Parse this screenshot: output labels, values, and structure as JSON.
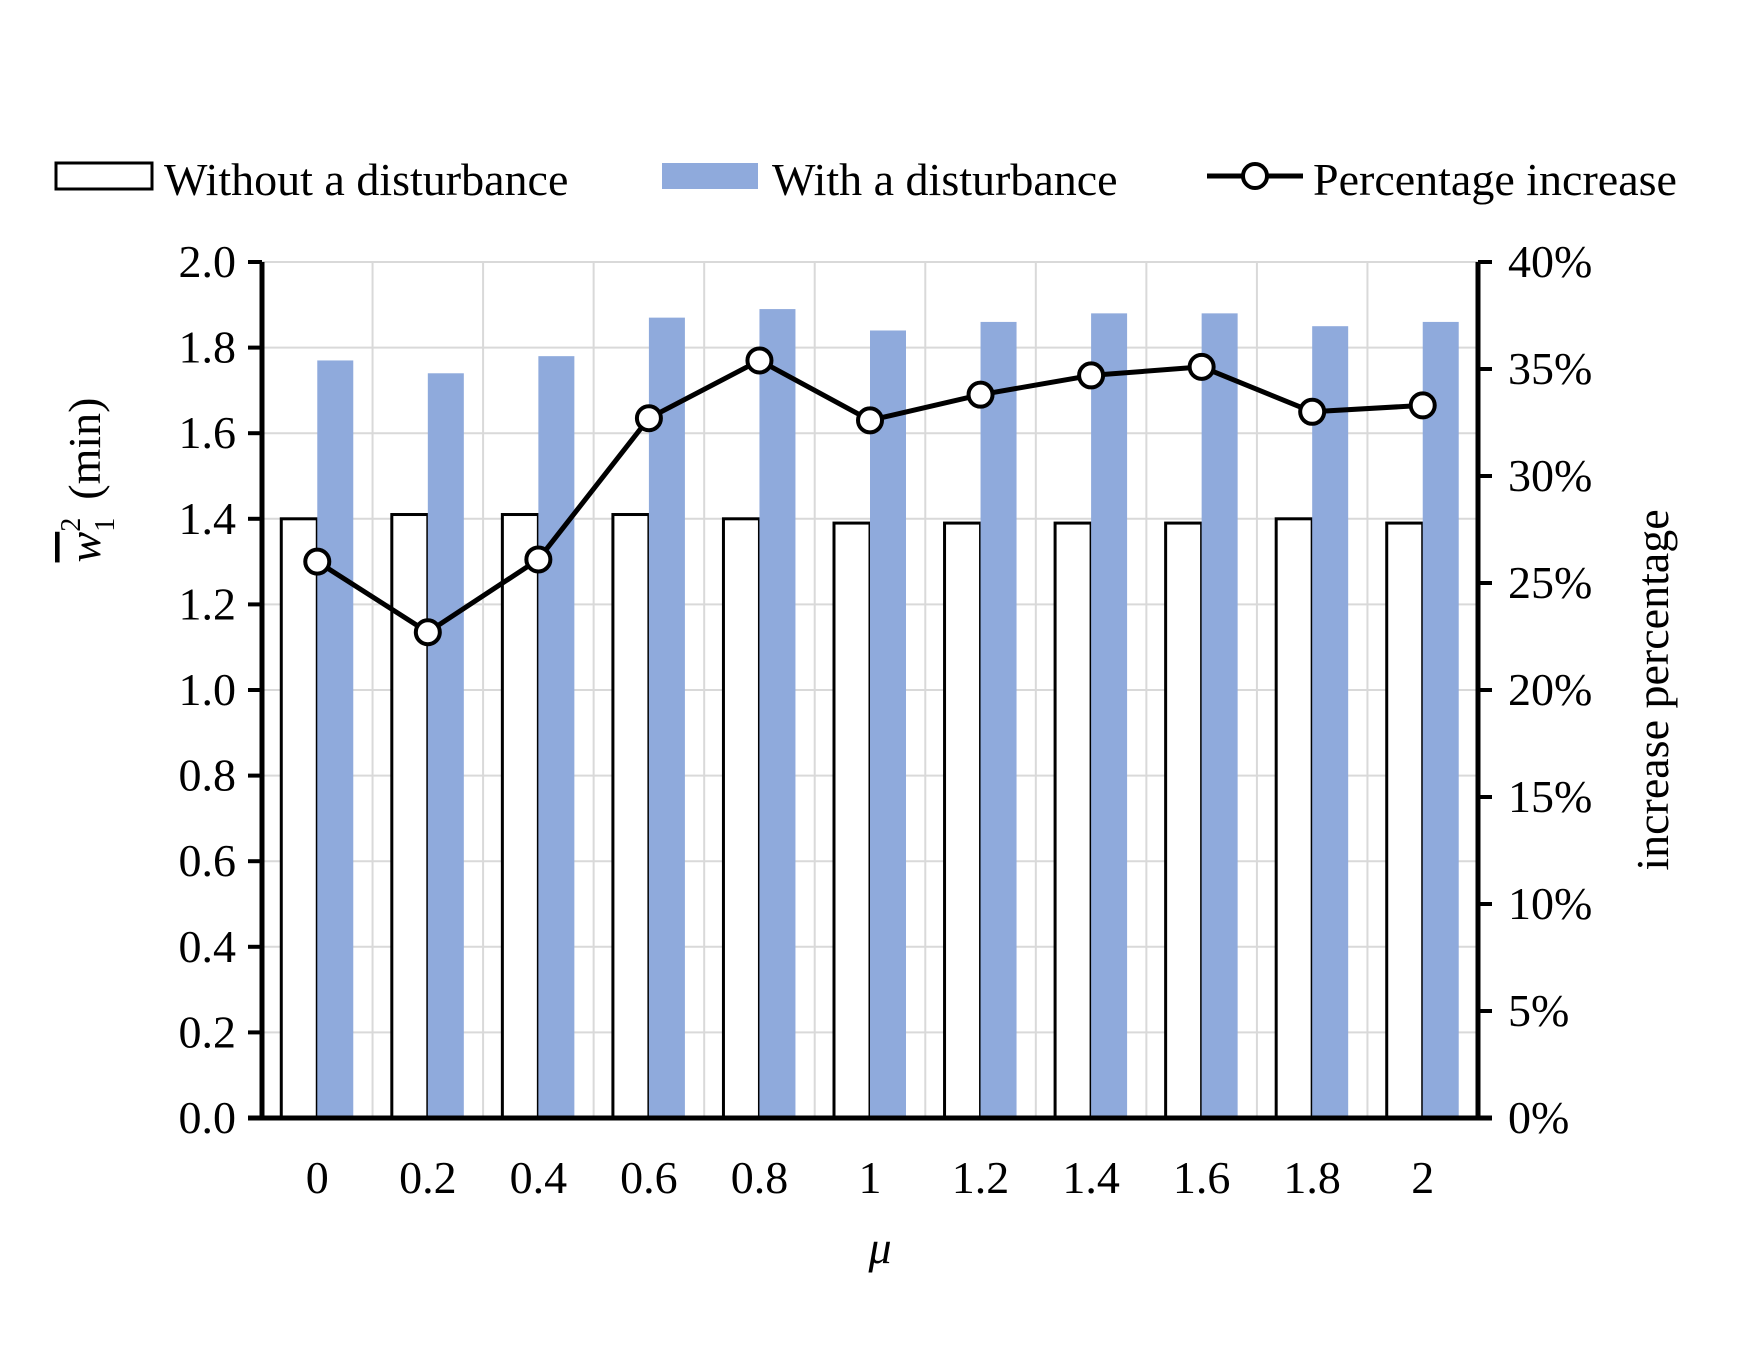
{
  "chart_data": {
    "type": "bar",
    "categories": [
      "0",
      "0.2",
      "0.4",
      "0.6",
      "0.8",
      "1",
      "1.2",
      "1.4",
      "1.6",
      "1.8",
      "2"
    ],
    "series": [
      {
        "name": "Without a disturbance",
        "kind": "bar",
        "axis": "left",
        "color": "#ffffff",
        "stroke": "#000000",
        "values": [
          1.4,
          1.41,
          1.41,
          1.41,
          1.4,
          1.39,
          1.39,
          1.39,
          1.39,
          1.4,
          1.39
        ]
      },
      {
        "name": "With a disturbance",
        "kind": "bar",
        "axis": "left",
        "color": "#8faadc",
        "values": [
          1.77,
          1.74,
          1.78,
          1.87,
          1.89,
          1.84,
          1.86,
          1.88,
          1.88,
          1.85,
          1.86
        ]
      },
      {
        "name": "Percentage increase",
        "kind": "line",
        "axis": "right",
        "color": "#000000",
        "marker": "open-circle",
        "values": [
          0.26,
          0.227,
          0.261,
          0.327,
          0.354,
          0.326,
          0.338,
          0.347,
          0.351,
          0.33,
          0.333
        ]
      }
    ],
    "left_axis": {
      "ylim": [
        0,
        2.0
      ],
      "ticks": [
        "0.0",
        "0.2",
        "0.4",
        "0.6",
        "0.8",
        "1.0",
        "1.2",
        "1.4",
        "1.6",
        "1.8",
        "2.0"
      ],
      "label_symbol": "w",
      "label_superscript": "2",
      "label_subscript": "1",
      "label_unit": "(min)"
    },
    "right_axis": {
      "ylim": [
        0,
        0.4
      ],
      "ticks": [
        "0%",
        "5%",
        "10%",
        "15%",
        "20%",
        "25%",
        "30%",
        "35%",
        "40%"
      ],
      "label": "increase percentage"
    },
    "xlabel": "μ",
    "grid": true,
    "legend_position": "top"
  }
}
